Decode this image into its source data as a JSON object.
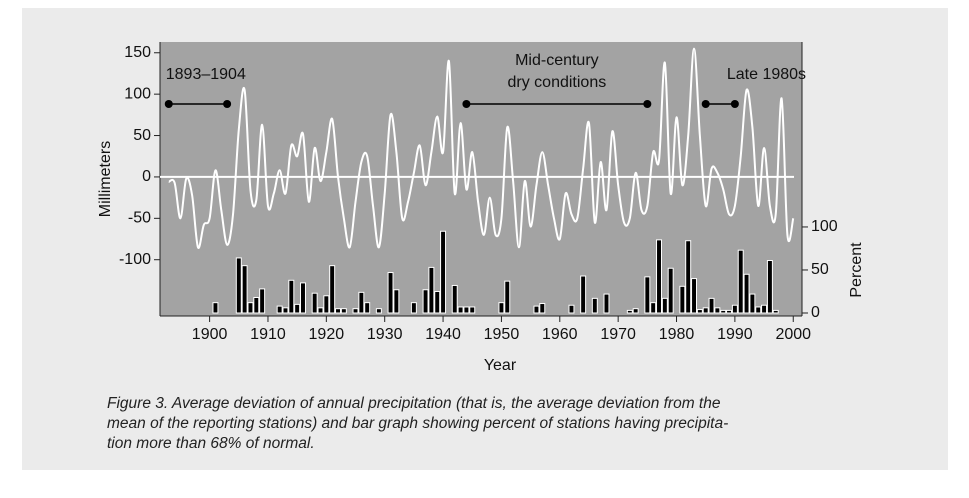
{
  "chart_data": {
    "type": "line-bar",
    "ylabel": "Millimeters",
    "y2label": "Percent",
    "xlabel": "Year",
    "xlim": [
      1891.5,
      2001.5
    ],
    "xticks": [
      1900,
      1910,
      1920,
      1930,
      1940,
      1950,
      1960,
      1970,
      1980,
      1990,
      2000
    ],
    "ylim": [
      -168,
      163
    ],
    "yticks": [
      -100,
      -50,
      0,
      50,
      100,
      150
    ],
    "y2lim": [
      -3.5,
      315
    ],
    "y2ticks": [
      0,
      50,
      100
    ],
    "zero_line": true,
    "series": [
      {
        "type": "line",
        "color": "#ffffff",
        "x": [
          1893,
          1894,
          1895,
          1896,
          1897,
          1898,
          1899,
          1900,
          1901,
          1902,
          1903,
          1904,
          1905,
          1906,
          1907,
          1908,
          1909,
          1910,
          1911,
          1912,
          1913,
          1914,
          1915,
          1916,
          1917,
          1918,
          1919,
          1920,
          1921,
          1922,
          1923,
          1924,
          1925,
          1926,
          1927,
          1928,
          1929,
          1930,
          1931,
          1932,
          1933,
          1934,
          1935,
          1936,
          1937,
          1938,
          1939,
          1940,
          1941,
          1942,
          1943,
          1944,
          1945,
          1946,
          1947,
          1948,
          1949,
          1950,
          1951,
          1952,
          1953,
          1954,
          1955,
          1956,
          1957,
          1958,
          1959,
          1960,
          1961,
          1962,
          1963,
          1964,
          1965,
          1966,
          1967,
          1968,
          1969,
          1970,
          1971,
          1972,
          1973,
          1974,
          1975,
          1976,
          1977,
          1978,
          1979,
          1980,
          1981,
          1982,
          1983,
          1984,
          1985,
          1986,
          1987,
          1988,
          1989,
          1990,
          1991,
          1992,
          1993,
          1994,
          1995,
          1996,
          1997,
          1998,
          1999,
          2000
        ],
        "values": [
          -6,
          -7,
          -50,
          -2,
          -22,
          -85,
          -58,
          -50,
          8,
          -40,
          -82,
          -46,
          57,
          105,
          -16,
          -28,
          63,
          -35,
          -20,
          8,
          -20,
          38,
          25,
          52,
          -30,
          35,
          -5,
          30,
          70,
          0,
          -50,
          -85,
          -30,
          18,
          25,
          -35,
          -85,
          -20,
          75,
          30,
          -50,
          -30,
          5,
          38,
          -10,
          30,
          73,
          30,
          140,
          -20,
          65,
          -15,
          30,
          -30,
          -70,
          -25,
          -70,
          -50,
          60,
          -5,
          -85,
          -5,
          -60,
          -10,
          30,
          -10,
          -50,
          -75,
          -20,
          -45,
          -50,
          10,
          65,
          -55,
          18,
          -40,
          55,
          -10,
          -55,
          -50,
          5,
          -40,
          -35,
          30,
          20,
          138,
          -20,
          72,
          -10,
          50,
          155,
          50,
          -35,
          10,
          5,
          -15,
          -45,
          -35,
          25,
          105,
          60,
          -35,
          35,
          -35,
          -45,
          95,
          -70,
          -50
        ]
      },
      {
        "type": "bar",
        "color": "#000000",
        "axis": "y2",
        "x": [
          1901,
          1905,
          1906,
          1907,
          1908,
          1909,
          1912,
          1913,
          1914,
          1915,
          1916,
          1918,
          1919,
          1920,
          1921,
          1922,
          1923,
          1925,
          1926,
          1927,
          1929,
          1931,
          1932,
          1935,
          1937,
          1938,
          1939,
          1940,
          1942,
          1943,
          1944,
          1945,
          1950,
          1951,
          1956,
          1957,
          1962,
          1964,
          1966,
          1968,
          1972,
          1973,
          1975,
          1976,
          1977,
          1978,
          1979,
          1981,
          1982,
          1983,
          1984,
          1985,
          1986,
          1987,
          1988,
          1989,
          1990,
          1991,
          1992,
          1993,
          1994,
          1995,
          1996,
          1997
        ],
        "values": [
          12,
          64,
          55,
          12,
          18,
          28,
          8,
          6,
          38,
          10,
          35,
          23,
          6,
          20,
          55,
          5,
          5,
          5,
          24,
          12,
          5,
          47,
          27,
          12,
          27,
          53,
          25,
          95,
          32,
          7,
          7,
          7,
          12,
          37,
          8,
          11,
          9,
          43,
          17,
          22,
          3,
          5,
          42,
          12,
          85,
          17,
          52,
          31,
          84,
          40,
          4,
          6,
          17,
          6,
          3,
          3,
          9,
          73,
          45,
          22,
          7,
          9,
          61,
          3
        ]
      }
    ],
    "annotations": [
      {
        "lines": [
          "1893–1904"
        ],
        "from": 1893,
        "to": 1903
      },
      {
        "lines": [
          "Mid-century",
          "dry conditions"
        ],
        "from": 1944,
        "to": 1975
      },
      {
        "lines": [
          "Late 1980s"
        ],
        "from": 1985,
        "to": 1990
      }
    ]
  },
  "caption_lines": [
    "Figure 3. Average deviation of annual precipitation (that is, the average deviation from the",
    "mean of the reporting stations) and bar graph showing percent of stations having precipita-",
    "tion more than 68% of normal."
  ]
}
